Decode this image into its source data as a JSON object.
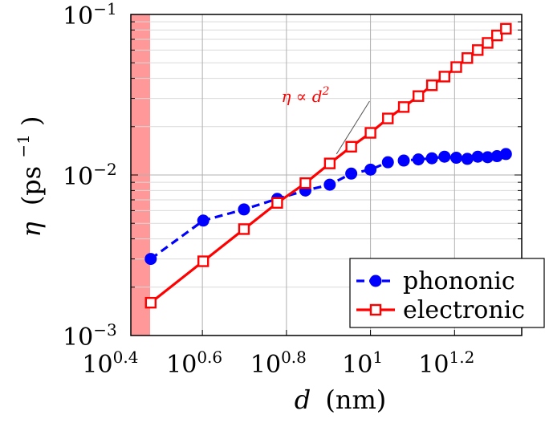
{
  "chart_data": {
    "type": "line",
    "xlabel": {
      "symbol": "d",
      "unit": "(nm)"
    },
    "ylabel": {
      "symbol": "η",
      "unit": "(ps",
      "unit_sup": "−1",
      "unit_close": ")"
    },
    "xscale": "log",
    "yscale": "log",
    "xlim": [
      2.69,
      22.9
    ],
    "ylim": [
      0.001,
      0.1
    ],
    "x_ticks": [
      {
        "base": "10",
        "exp": "0.4",
        "value": 2.512
      },
      {
        "base": "10",
        "exp": "0.6",
        "value": 3.981
      },
      {
        "base": "10",
        "exp": "0.8",
        "value": 6.31
      },
      {
        "base": "10",
        "exp": "1",
        "value": 10.0
      },
      {
        "base": "10",
        "exp": "1.2",
        "value": 15.85
      }
    ],
    "y_ticks": [
      {
        "base": "10",
        "exp": "−3",
        "value": 0.001
      },
      {
        "base": "10",
        "exp": "−2",
        "value": 0.01
      },
      {
        "base": "10",
        "exp": "−1",
        "value": 0.1
      }
    ],
    "grid": true,
    "shaded_region": {
      "x_from": 2.69,
      "x_to": 2.99,
      "color": "#ff9999"
    },
    "legend_position": "bottom-right",
    "series": [
      {
        "name": "phononic",
        "color": "#0000ff",
        "line_style": "dashed",
        "marker": "circle",
        "x": [
          3.0,
          4.0,
          5.0,
          6.0,
          7.0,
          8.0,
          9.0,
          10.0,
          11.0,
          12.0,
          13.0,
          14.0,
          15.0,
          16.0,
          17.0,
          18.0,
          19.0,
          20.0,
          21.0
        ],
        "y": [
          0.003,
          0.0052,
          0.0061,
          0.0071,
          0.008,
          0.0087,
          0.0102,
          0.0108,
          0.012,
          0.0123,
          0.0125,
          0.0127,
          0.013,
          0.0128,
          0.0126,
          0.013,
          0.0129,
          0.0131,
          0.0135
        ]
      },
      {
        "name": "electronic",
        "color": "#ff0000",
        "line_style": "solid",
        "marker": "square",
        "x": [
          3.0,
          4.0,
          5.0,
          6.0,
          7.0,
          8.0,
          9.0,
          10.0,
          11.0,
          12.0,
          13.0,
          14.0,
          15.0,
          16.0,
          17.0,
          18.0,
          19.0,
          20.0,
          21.0
        ],
        "y": [
          0.0016,
          0.0029,
          0.0046,
          0.0067,
          0.0089,
          0.0118,
          0.015,
          0.0183,
          0.0225,
          0.0265,
          0.031,
          0.0362,
          0.041,
          0.047,
          0.0535,
          0.06,
          0.0665,
          0.074,
          0.0815
        ]
      }
    ],
    "annotation": {
      "text_lhs": "η ∝ d",
      "text_sup": "2",
      "points_to": {
        "x": 8.3,
        "y": 0.0135
      },
      "text_at": {
        "x": 7.0,
        "y": 0.032
      },
      "color": "#ff0000"
    }
  }
}
